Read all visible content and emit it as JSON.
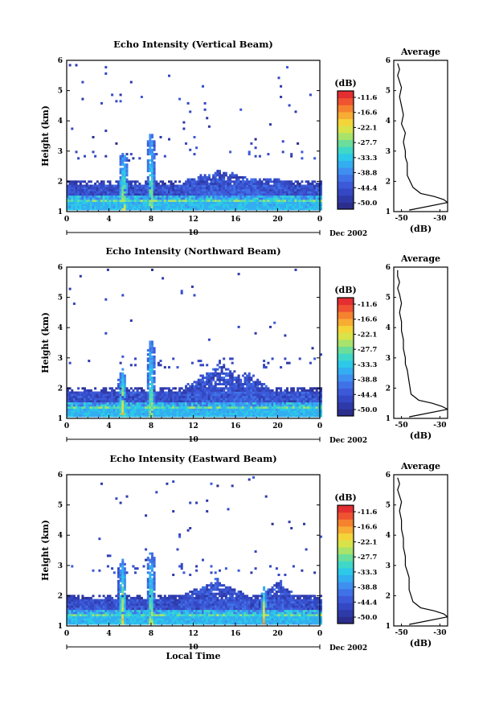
{
  "figure": {
    "shared_xlabel": "Local Time",
    "date_label": "Dec 2002",
    "day_label": "10",
    "colorbar_unit": "(dB)",
    "colorbar_ticks": [
      "-11.6",
      "-16.6",
      "-22.1",
      "-27.7",
      "-33.3",
      "-38.8",
      "-44.4",
      "-50.0"
    ],
    "colorbar_colors": [
      "#2b2e8c",
      "#2e3aa8",
      "#3548c3",
      "#3c5ad8",
      "#3f72e6",
      "#3f8ff0",
      "#33aef0",
      "#2cc9e8",
      "#3fd8c8",
      "#6ade9a",
      "#a8e36b",
      "#d8e34a",
      "#f3d53a",
      "#f7ac34",
      "#f5822f",
      "#ef5331",
      "#e32f31"
    ],
    "average_title": "Average",
    "average_xlabel": "(dB)",
    "average_xticks": [
      "-50",
      "-30"
    ]
  },
  "chart_data": [
    {
      "type": "heatmap",
      "title": "Echo Intensity (Vertical Beam)",
      "ylabel": "Height (km)",
      "xlabel": "",
      "x_ticks": [
        "0",
        "4",
        "8",
        "12",
        "16",
        "20",
        "0"
      ],
      "y_ticks": [
        "1",
        "2",
        "3",
        "4",
        "5",
        "6"
      ],
      "xlim": [
        0,
        24
      ],
      "ylim": [
        1,
        6
      ],
      "value_range_db": [
        -50.0,
        -11.6
      ],
      "average_profile": {
        "x_db": [
          -26,
          -28,
          -33,
          -40,
          -44,
          -47,
          -47,
          -48,
          -48,
          -49,
          -48,
          -50,
          -49,
          -50,
          -51,
          -50,
          -51,
          -52,
          -51,
          -52
        ],
        "height_km": [
          1.3,
          1.4,
          1.5,
          1.6,
          1.8,
          2.2,
          2.6,
          2.8,
          3.0,
          3.3,
          3.6,
          3.9,
          4.2,
          4.5,
          4.8,
          5.1,
          5.3,
          5.5,
          5.7,
          5.9
        ]
      }
    },
    {
      "type": "heatmap",
      "title": "Echo Intensity (Northward Beam)",
      "ylabel": "Height (km)",
      "xlabel": "",
      "x_ticks": [
        "0",
        "4",
        "8",
        "12",
        "16",
        "20",
        "0"
      ],
      "y_ticks": [
        "1",
        "2",
        "3",
        "4",
        "5",
        "6"
      ],
      "xlim": [
        0,
        24
      ],
      "ylim": [
        1,
        6
      ],
      "value_range_db": [
        -50.0,
        -11.6
      ],
      "average_profile": {
        "x_db": [
          -26,
          -29,
          -34,
          -41,
          -45,
          -46,
          -47,
          -48,
          -48,
          -49,
          -49,
          -50,
          -50,
          -51,
          -50,
          -51,
          -52,
          -51,
          -52,
          -52
        ],
        "height_km": [
          1.3,
          1.4,
          1.5,
          1.6,
          1.8,
          2.2,
          2.6,
          2.8,
          3.0,
          3.3,
          3.6,
          3.9,
          4.2,
          4.5,
          4.8,
          5.1,
          5.3,
          5.5,
          5.7,
          5.9
        ]
      }
    },
    {
      "type": "heatmap",
      "title": "Echo Intensity (Eastward Beam)",
      "ylabel": "Height (km)",
      "xlabel": "Local Time",
      "x_ticks": [
        "0",
        "4",
        "8",
        "12",
        "16",
        "20",
        "0"
      ],
      "y_ticks": [
        "1",
        "2",
        "3",
        "4",
        "5",
        "6"
      ],
      "xlim": [
        0,
        24
      ],
      "ylim": [
        1,
        6
      ],
      "value_range_db": [
        -50.0,
        -11.6
      ],
      "average_profile": {
        "x_db": [
          -25,
          -28,
          -33,
          -40,
          -44,
          -46,
          -46,
          -47,
          -48,
          -48,
          -49,
          -49,
          -50,
          -50,
          -51,
          -50,
          -51,
          -52,
          -51,
          -52
        ],
        "height_km": [
          1.3,
          1.4,
          1.5,
          1.6,
          1.8,
          2.2,
          2.6,
          2.8,
          3.0,
          3.3,
          3.6,
          3.9,
          4.2,
          4.5,
          4.8,
          5.1,
          5.3,
          5.5,
          5.7,
          5.9
        ]
      }
    }
  ]
}
